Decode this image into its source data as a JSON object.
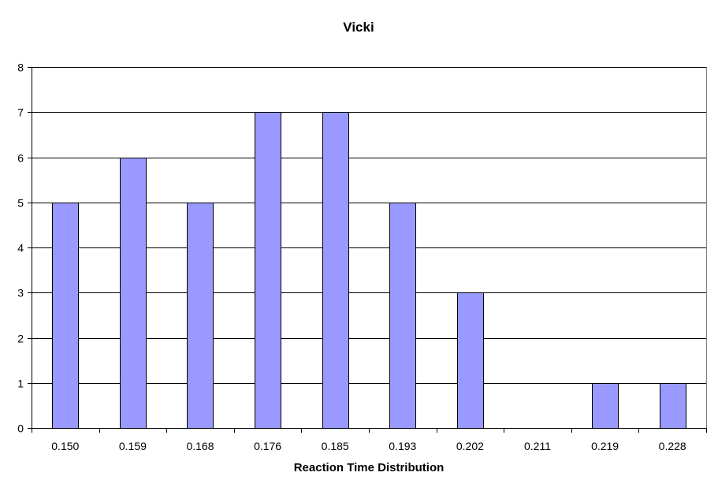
{
  "chart_data": {
    "type": "bar",
    "title": "Vicki",
    "xlabel": "Reaction Time Distribution",
    "ylabel": "",
    "categories": [
      "0.150",
      "0.159",
      "0.168",
      "0.176",
      "0.185",
      "0.193",
      "0.202",
      "0.211",
      "0.219",
      "0.228"
    ],
    "values": [
      5,
      6,
      5,
      7,
      7,
      5,
      3,
      0,
      1,
      1
    ],
    "ylim": [
      0,
      8
    ],
    "yticks": [
      0,
      1,
      2,
      3,
      4,
      5,
      6,
      7,
      8
    ],
    "grid": true,
    "legend": "none",
    "colors": {
      "bar_fill": "#9999ff",
      "bar_stroke": "#000000",
      "gridline": "#000000",
      "plot_border": "#808080",
      "background": "#ffffff"
    }
  }
}
